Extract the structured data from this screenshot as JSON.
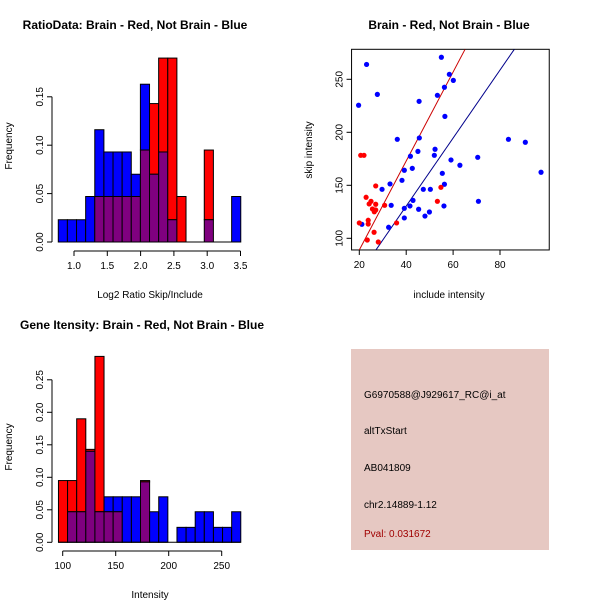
{
  "colors": {
    "brain": "#ff0000",
    "not_brain": "#0000ff",
    "overlap": "#7f007f",
    "panel_bg": "#e6c8c2",
    "pval": "#a00000",
    "red_line": "#cc0000",
    "blue_line": "#00008b"
  },
  "chart_data": [
    {
      "type": "bar",
      "title": "RatioData: Brain - Red, Not Brain - Blue",
      "xlabel": "Log2 Ratio Skip/Include",
      "ylabel": "Frequency",
      "bin_start": 0.764,
      "bin_width": 0.137,
      "xticks": [
        "1.0",
        "1.5",
        "2.0",
        "2.5",
        "3.0",
        "3.5"
      ],
      "xtick_values": [
        1.0,
        1.5,
        2.0,
        2.5,
        3.0,
        3.5
      ],
      "yticks": [
        "0.00",
        "0.05",
        "0.10",
        "0.15"
      ],
      "ytick_values": [
        0,
        0.05,
        0.1,
        0.15
      ],
      "series": [
        {
          "name": "Not Brain",
          "color": "blue",
          "values": [
            0.023,
            0.023,
            0.023,
            0.047,
            0.116,
            0.093,
            0.093,
            0.093,
            0.07,
            0.163,
            0.07,
            0.093,
            0.023,
            0,
            0,
            0,
            0.023,
            0,
            0,
            0.047
          ]
        },
        {
          "name": "Brain",
          "color": "red",
          "values": [
            0,
            0,
            0,
            0,
            0.047,
            0.047,
            0.047,
            0.047,
            0.047,
            0.095,
            0.143,
            0.19,
            0.19,
            0.047,
            0,
            0,
            0.095,
            0,
            0,
            0
          ]
        }
      ]
    },
    {
      "type": "scatter",
      "title": "Brain - Red, Not Brain - Blue",
      "xlabel": "include intensity",
      "ylabel": "skip intensity",
      "xlim": [
        16.7,
        101
      ],
      "ylim": [
        89,
        278.3
      ],
      "xticks": [
        "20",
        "40",
        "60",
        "80"
      ],
      "xtick_values": [
        20,
        40,
        60,
        80
      ],
      "yticks": [
        "100",
        "150",
        "200",
        "250"
      ],
      "ytick_values": [
        100,
        150,
        200,
        250
      ],
      "series": [
        {
          "name": "Not Brain",
          "color": "blue",
          "points": [
            [
              55,
              270.8
            ],
            [
              23.1,
              264
            ],
            [
              58.4,
              254.7
            ],
            [
              60.1,
              249
            ],
            [
              56.3,
              242.5
            ],
            [
              27.7,
              235.8
            ],
            [
              53.3,
              234.9
            ],
            [
              19.7,
              225.5
            ],
            [
              45.5,
              229.2
            ],
            [
              56.5,
              215
            ],
            [
              36.2,
              193.4
            ],
            [
              45.6,
              194.7
            ],
            [
              83.6,
              193.4
            ],
            [
              90.8,
              190.6
            ],
            [
              45,
              182
            ],
            [
              52.3,
              184
            ],
            [
              52,
              178.3
            ],
            [
              41.8,
              177.4
            ],
            [
              70.5,
              176.4
            ],
            [
              59.1,
              173.9
            ],
            [
              62.9,
              168.9
            ],
            [
              42.6,
              166
            ],
            [
              39.2,
              164.2
            ],
            [
              97.5,
              162.3
            ],
            [
              55.4,
              161.3
            ],
            [
              38.2,
              154.7
            ],
            [
              33.1,
              151.3
            ],
            [
              56.3,
              151
            ],
            [
              29.7,
              146.2
            ],
            [
              47.3,
              146.2
            ],
            [
              50.3,
              146.2
            ],
            [
              33.6,
              131.1
            ],
            [
              56.1,
              130.5
            ],
            [
              41.6,
              130.5
            ],
            [
              42.9,
              135.8
            ],
            [
              70.8,
              134.9
            ],
            [
              39.2,
              128.3
            ],
            [
              45.3,
              127.4
            ],
            [
              49.9,
              124.8
            ],
            [
              48,
              121
            ],
            [
              39.2,
              119.2
            ],
            [
              32.5,
              110.4
            ],
            [
              21.1,
              113.2
            ]
          ]
        },
        {
          "name": "Brain",
          "color": "red",
          "points": [
            [
              20.6,
              178.3
            ],
            [
              22,
              178.3
            ],
            [
              27,
              149.4
            ],
            [
              22.9,
              138.7
            ],
            [
              25,
              134.9
            ],
            [
              24.2,
              132.4
            ],
            [
              27,
              132.1
            ],
            [
              30.8,
              131.1
            ],
            [
              25.6,
              127.7
            ],
            [
              27,
              126.7
            ],
            [
              26.4,
              125
            ],
            [
              54.8,
              148.1
            ],
            [
              53.3,
              134.9
            ],
            [
              20,
              114.5
            ],
            [
              23.8,
              117
            ],
            [
              23.8,
              113.5
            ],
            [
              35.9,
              114.5
            ],
            [
              26.3,
              105.7
            ],
            [
              23.4,
              98.4
            ],
            [
              28.1,
              96.5
            ]
          ]
        }
      ],
      "lines": [
        {
          "name": "Brain fit",
          "color": "red",
          "from": [
            20,
            89
          ],
          "to": [
            65.1,
            278.3
          ]
        },
        {
          "name": "Not Brain fit",
          "color": "blue",
          "from": [
            27.1,
            89
          ],
          "to": [
            86.1,
            278.3
          ]
        }
      ]
    },
    {
      "type": "bar",
      "title": "Gene Itensity: Brain - Red, Not Brain - Blue",
      "xlabel": "Intensity",
      "ylabel": "Frequency",
      "bin_start": 96,
      "bin_width": 8.6,
      "xticks": [
        "100",
        "150",
        "200",
        "250"
      ],
      "xtick_values": [
        100,
        150,
        200,
        250
      ],
      "yticks": [
        "0.00",
        "0.05",
        "0.10",
        "0.15",
        "0.20",
        "0.25"
      ],
      "ytick_values": [
        0,
        0.05,
        0.1,
        0.15,
        0.2,
        0.25
      ],
      "series": [
        {
          "name": "Not Brain",
          "color": "blue",
          "values": [
            0,
            0.047,
            0.047,
            0.14,
            0.047,
            0.07,
            0.07,
            0.07,
            0.07,
            0.093,
            0.047,
            0.07,
            0,
            0.023,
            0.023,
            0.047,
            0.047,
            0.023,
            0.023,
            0.047
          ]
        },
        {
          "name": "Brain",
          "color": "red",
          "values": [
            0.095,
            0.095,
            0.19,
            0.143,
            0.286,
            0.047,
            0.047,
            0,
            0,
            0.095,
            0,
            0,
            0,
            0,
            0,
            0,
            0,
            0,
            0,
            0
          ]
        }
      ]
    }
  ],
  "info": {
    "probe": "G6970588@J929617_RC@i_at",
    "event": "altTxStart",
    "accession": "AB041809",
    "location": "chr2.14889-1.12",
    "pval": "Pval: 0.031672"
  }
}
